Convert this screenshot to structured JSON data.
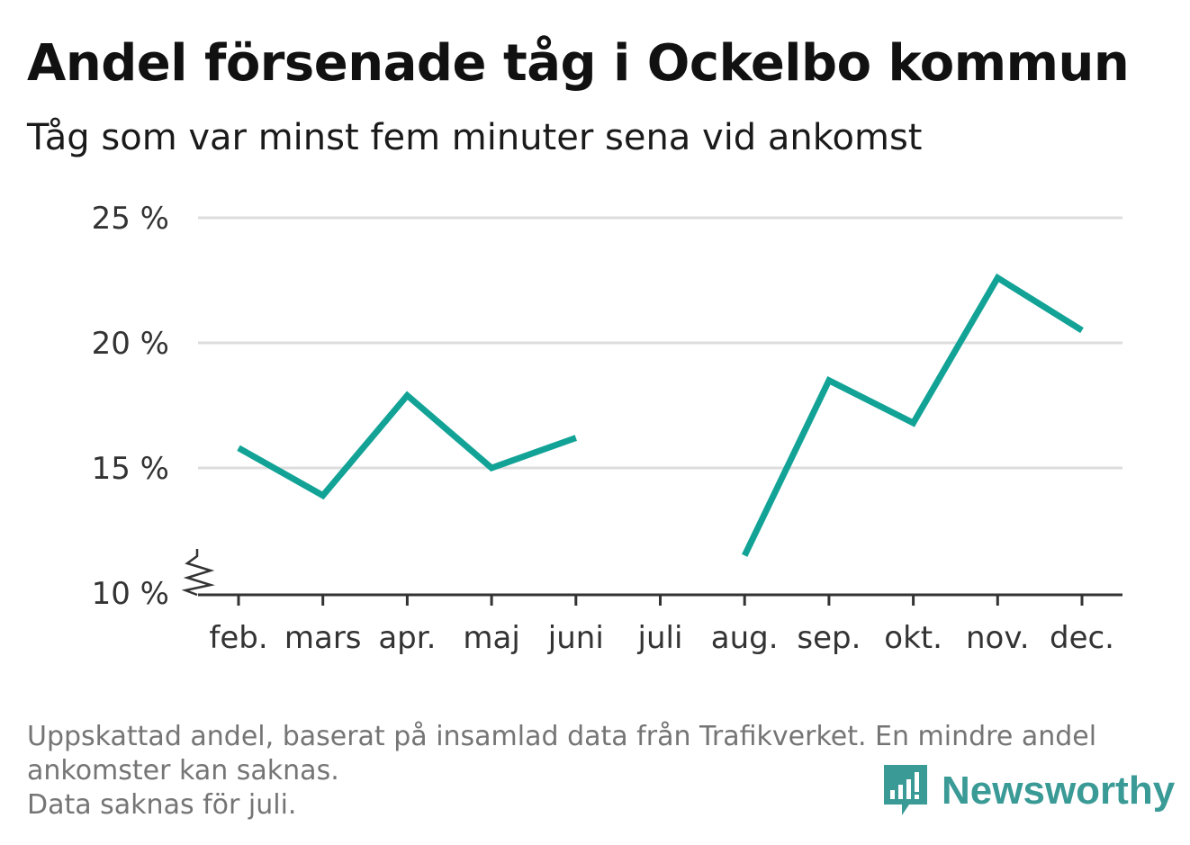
{
  "header": {
    "title": "Andel försenade tåg i Ockelbo kommun",
    "subtitle": "Tåg som var minst fem minuter sena vid ankomst"
  },
  "footnote": {
    "line1": "Uppskattad andel, baserat på insamlad data från Trafikverket. En mindre andel",
    "line2": "ankomster kan saknas.",
    "line3": "Data saknas för juli."
  },
  "brand": {
    "name": "Newsworthy",
    "icon": "newsworthy-logo-icon",
    "color": "#3a9a96"
  },
  "colors": {
    "line": "#12a396",
    "grid": "#dddddd",
    "axis": "#333333"
  },
  "chart_data": {
    "type": "line",
    "categories": [
      "feb.",
      "mars",
      "apr.",
      "maj",
      "juni",
      "juli",
      "aug.",
      "sep.",
      "okt.",
      "nov.",
      "dec."
    ],
    "series": [
      {
        "values": [
          15.8,
          13.9,
          17.9,
          15.0,
          16.2,
          null,
          11.5,
          18.5,
          16.8,
          22.6,
          20.5
        ]
      }
    ],
    "y_ticks": [
      10,
      15,
      20,
      25
    ],
    "y_tick_labels": [
      "10 %",
      "15 %",
      "20 %",
      "25 %"
    ],
    "ylim": [
      10,
      25
    ],
    "y_axis_break": true,
    "grid": true,
    "title": "Andel försenade tåg i Ockelbo kommun",
    "xlabel": "",
    "ylabel": ""
  }
}
